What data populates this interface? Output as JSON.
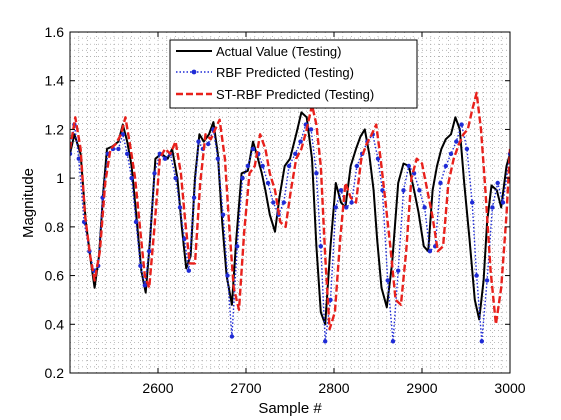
{
  "chart_data": {
    "type": "line",
    "title": "",
    "xlabel": "Sample #",
    "ylabel": "Magnitude",
    "xlim": [
      2500,
      3000
    ],
    "ylim": [
      0.2,
      1.6
    ],
    "xticks": [
      2600,
      2700,
      2800,
      2900,
      3000
    ],
    "yticks": [
      0.2,
      0.4,
      0.6,
      0.8,
      1,
      1.2,
      1.4,
      1.6
    ],
    "grid": "dotted",
    "legend_position": "top-center",
    "series": [
      {
        "name": "Actual Value (Testing)",
        "color": "#000000",
        "style": "solid",
        "x": [
          2500,
          2505,
          2512,
          2518,
          2524,
          2528,
          2533,
          2538,
          2542,
          2548,
          2555,
          2560,
          2565,
          2570,
          2576,
          2581,
          2586,
          2591,
          2597,
          2604,
          2611,
          2616,
          2622,
          2627,
          2632,
          2637,
          2642,
          2647,
          2652,
          2658,
          2663,
          2668,
          2673,
          2678,
          2684,
          2689,
          2695,
          2702,
          2708,
          2712,
          2718,
          2722,
          2727,
          2733,
          2738,
          2744,
          2750,
          2757,
          2763,
          2769,
          2775,
          2780,
          2785,
          2790,
          2796,
          2802,
          2808,
          2813,
          2819,
          2825,
          2830,
          2835,
          2840,
          2845,
          2849,
          2854,
          2860,
          2866,
          2873,
          2879,
          2885,
          2891,
          2896,
          2902,
          2907,
          2912,
          2917,
          2922,
          2927,
          2933,
          2938,
          2943,
          2948,
          2954,
          2960,
          2965,
          2970,
          2974,
          2979,
          2985,
          2990,
          2996,
          3000
        ],
        "y": [
          1.1,
          1.18,
          1.1,
          0.82,
          0.65,
          0.55,
          0.68,
          0.95,
          1.12,
          1.13,
          1.15,
          1.22,
          1.15,
          1.05,
          0.82,
          0.62,
          0.53,
          0.75,
          1.08,
          1.1,
          1.08,
          1.12,
          1.0,
          0.8,
          0.63,
          0.68,
          1.0,
          1.18,
          1.15,
          1.18,
          1.23,
          1.1,
          0.82,
          0.6,
          0.48,
          0.75,
          1.02,
          1.03,
          1.15,
          1.1,
          1.02,
          0.95,
          0.85,
          0.78,
          0.92,
          1.05,
          1.08,
          1.18,
          1.27,
          1.25,
          1.08,
          0.72,
          0.45,
          0.4,
          0.72,
          0.98,
          0.9,
          0.88,
          1.05,
          1.12,
          1.17,
          1.2,
          1.1,
          0.95,
          0.75,
          0.55,
          0.47,
          0.65,
          0.98,
          1.06,
          1.05,
          0.95,
          0.86,
          0.72,
          0.7,
          0.95,
          1.05,
          1.12,
          1.16,
          1.18,
          1.25,
          1.2,
          0.98,
          0.75,
          0.5,
          0.42,
          0.58,
          0.82,
          0.97,
          0.95,
          0.88,
          1.05,
          1.1
        ]
      },
      {
        "name": "RBF Predicted (Testing)",
        "color": "#1f2bd6",
        "style": "dotted-markers",
        "x": [
          2500,
          2505,
          2510,
          2516,
          2522,
          2527,
          2532,
          2537,
          2543,
          2549,
          2555,
          2560,
          2565,
          2570,
          2575,
          2580,
          2585,
          2590,
          2596,
          2602,
          2608,
          2614,
          2620,
          2625,
          2630,
          2635,
          2641,
          2646,
          2651,
          2657,
          2663,
          2668,
          2674,
          2679,
          2684,
          2690,
          2696,
          2702,
          2708,
          2714,
          2719,
          2725,
          2731,
          2737,
          2743,
          2749,
          2756,
          2762,
          2768,
          2774,
          2780,
          2785,
          2790,
          2796,
          2802,
          2808,
          2814,
          2820,
          2826,
          2832,
          2838,
          2844,
          2850,
          2855,
          2861,
          2867,
          2873,
          2879,
          2885,
          2891,
          2897,
          2903,
          2909,
          2915,
          2921,
          2927,
          2933,
          2939,
          2945,
          2951,
          2957,
          2962,
          2968,
          2974,
          2980,
          2986,
          2992,
          3000
        ],
        "y": [
          1.1,
          1.22,
          1.08,
          0.82,
          0.7,
          0.62,
          0.64,
          0.92,
          1.1,
          1.12,
          1.12,
          1.18,
          1.1,
          1.0,
          0.82,
          0.64,
          0.56,
          0.7,
          1.02,
          1.1,
          1.08,
          1.1,
          1.0,
          0.88,
          0.75,
          0.62,
          0.92,
          1.15,
          1.12,
          1.14,
          1.2,
          1.08,
          0.85,
          0.6,
          0.35,
          0.72,
          1.0,
          1.05,
          1.12,
          1.1,
          1.05,
          0.98,
          0.9,
          0.85,
          0.9,
          1.05,
          1.1,
          1.15,
          1.22,
          1.2,
          1.02,
          0.72,
          0.33,
          0.5,
          0.88,
          0.95,
          0.88,
          0.9,
          1.05,
          1.1,
          1.15,
          1.18,
          1.08,
          0.95,
          0.58,
          0.33,
          0.62,
          0.95,
          1.05,
          1.02,
          0.95,
          0.88,
          0.7,
          0.72,
          0.98,
          1.05,
          1.1,
          1.15,
          1.22,
          1.12,
          0.9,
          0.6,
          0.33,
          0.58,
          0.88,
          0.98,
          0.9,
          1.1
        ]
      },
      {
        "name": "ST-RBF Predicted (Testing)",
        "color": "#e8211c",
        "style": "dashed",
        "x": [
          2500,
          2506,
          2512,
          2517,
          2523,
          2528,
          2534,
          2540,
          2546,
          2552,
          2558,
          2563,
          2569,
          2574,
          2580,
          2585,
          2590,
          2596,
          2602,
          2608,
          2614,
          2620,
          2626,
          2631,
          2636,
          2642,
          2648,
          2654,
          2660,
          2665,
          2670,
          2676,
          2681,
          2686,
          2692,
          2698,
          2704,
          2710,
          2716,
          2722,
          2727,
          2733,
          2739,
          2745,
          2751,
          2757,
          2763,
          2769,
          2775,
          2780,
          2785,
          2790,
          2795,
          2801,
          2807,
          2813,
          2819,
          2825,
          2831,
          2837,
          2843,
          2848,
          2853,
          2858,
          2864,
          2870,
          2876,
          2882,
          2888,
          2894,
          2900,
          2906,
          2912,
          2918,
          2924,
          2930,
          2936,
          2942,
          2947,
          2952,
          2957,
          2962,
          2967,
          2972,
          2978,
          2984,
          2990,
          2996,
          3000
        ],
        "y": [
          1.12,
          1.25,
          1.12,
          0.85,
          0.68,
          0.58,
          0.7,
          0.98,
          1.12,
          1.14,
          1.18,
          1.25,
          1.12,
          1.0,
          0.78,
          0.6,
          0.55,
          0.8,
          1.08,
          1.12,
          1.1,
          1.15,
          1.02,
          0.82,
          0.65,
          0.65,
          0.98,
          1.18,
          1.16,
          1.2,
          1.24,
          1.08,
          0.8,
          0.55,
          0.46,
          0.78,
          1.02,
          1.05,
          1.18,
          1.12,
          1.02,
          0.95,
          0.82,
          0.8,
          0.95,
          1.08,
          1.12,
          1.2,
          1.3,
          1.22,
          1.05,
          0.68,
          0.38,
          0.45,
          0.75,
          0.98,
          0.92,
          0.9,
          1.08,
          1.14,
          1.18,
          1.22,
          1.08,
          0.92,
          0.72,
          0.5,
          0.48,
          0.7,
          1.0,
          1.08,
          1.06,
          0.95,
          0.84,
          0.7,
          0.72,
          0.98,
          1.08,
          1.14,
          1.18,
          1.2,
          1.28,
          1.35,
          1.2,
          0.95,
          0.62,
          0.4,
          0.55,
          0.85,
          1.12
        ]
      }
    ]
  }
}
